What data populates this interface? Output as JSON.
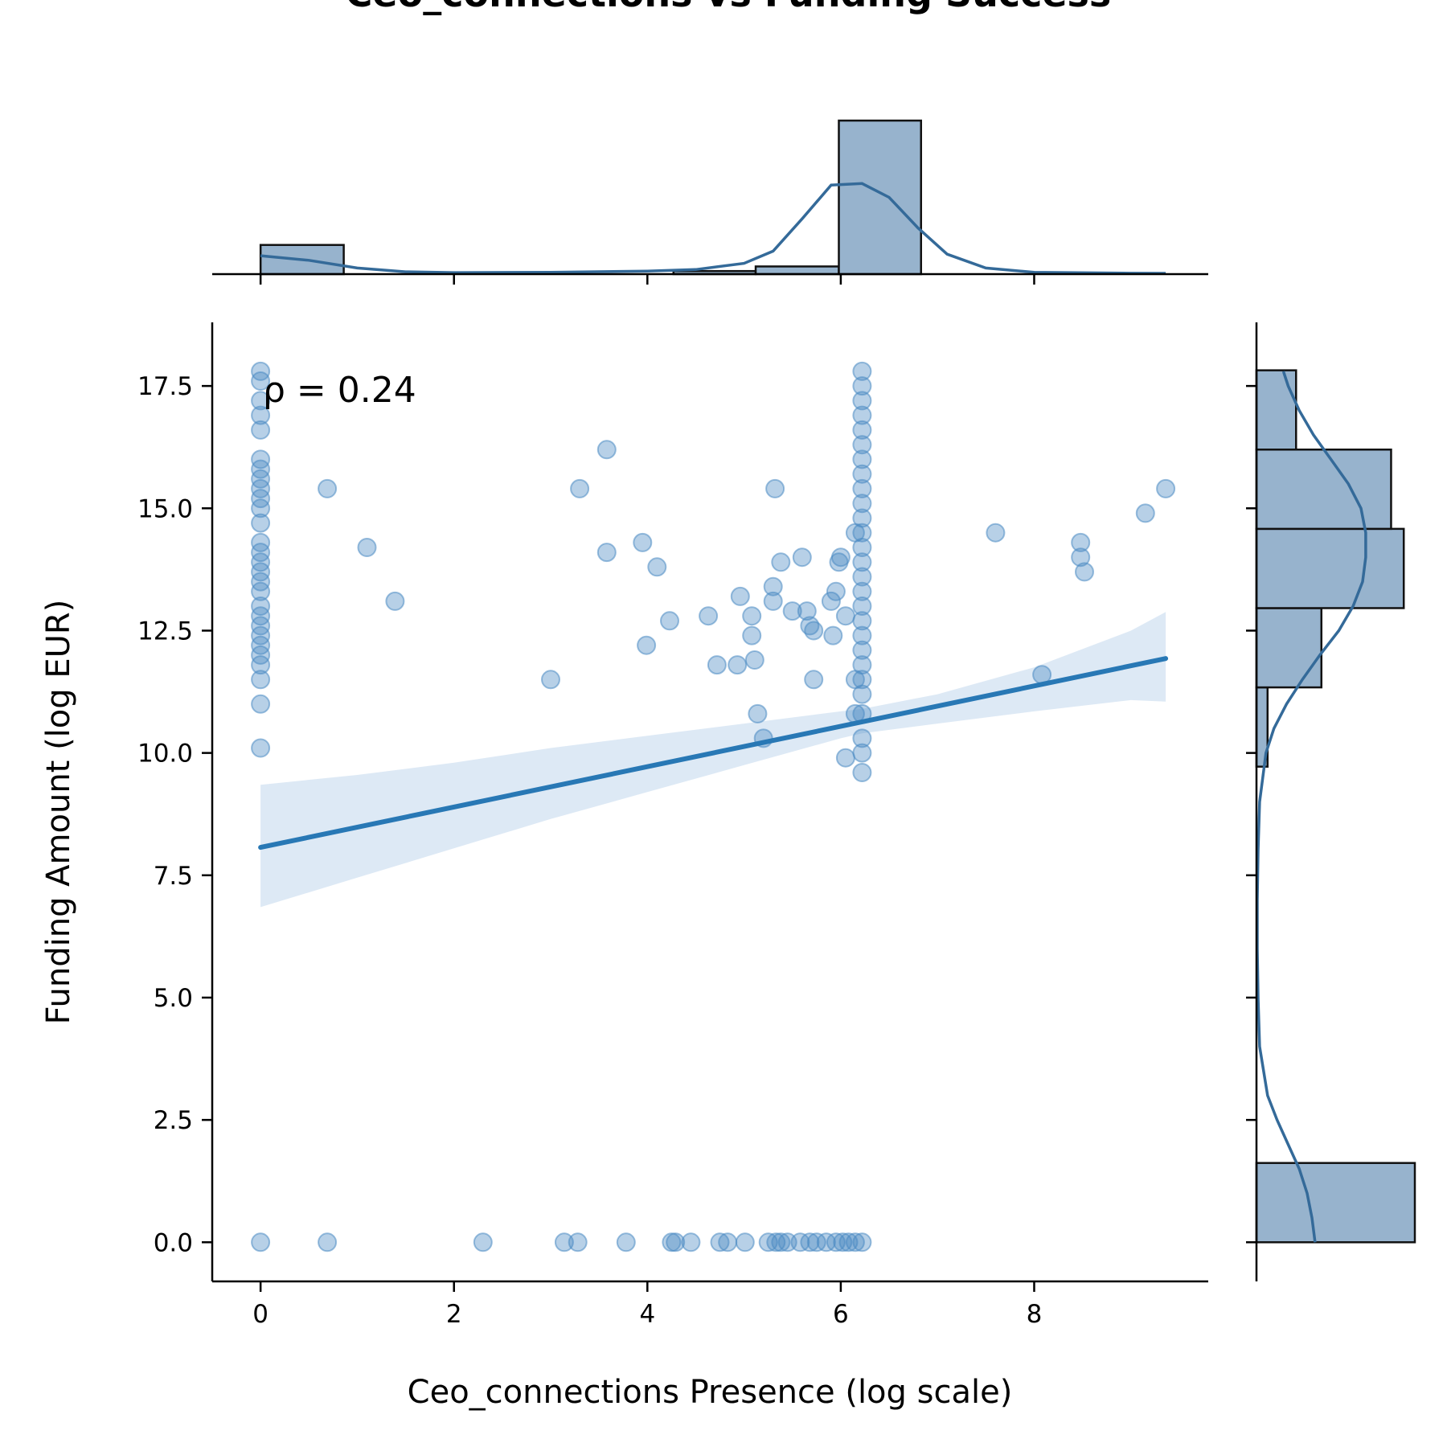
{
  "chart_data": {
    "type": "scatter",
    "title": "Ceo_connections vs Funding Success",
    "xlabel": "Ceo_connections Presence (log scale)",
    "ylabel": "Funding Amount (log EUR)",
    "annotation": "ρ = 0.24",
    "xlim": [
      -0.5,
      9.8
    ],
    "ylim": [
      -0.8,
      18.8
    ],
    "x_ticks": [
      0,
      2,
      4,
      6,
      8
    ],
    "y_ticks": [
      0.0,
      2.5,
      5.0,
      7.5,
      10.0,
      12.5,
      15.0,
      17.5
    ],
    "grid": false,
    "colors": {
      "points": "#4a8ac2",
      "line": "#2878b5",
      "band": "#c6dbef",
      "hist_fill": "#97b3cd",
      "kde": "#346a99"
    },
    "series": [
      {
        "points": [
          [
            0,
            17.8
          ],
          [
            0,
            17.6
          ],
          [
            0,
            17.2
          ],
          [
            0,
            16.9
          ],
          [
            0,
            16.6
          ],
          [
            0,
            16.0
          ],
          [
            0,
            15.8
          ],
          [
            0,
            15.6
          ],
          [
            0,
            15.4
          ],
          [
            0,
            15.2
          ],
          [
            0,
            15.0
          ],
          [
            0,
            14.7
          ],
          [
            0,
            14.3
          ],
          [
            0,
            14.1
          ],
          [
            0,
            13.9
          ],
          [
            0,
            13.7
          ],
          [
            0,
            13.5
          ],
          [
            0,
            13.3
          ],
          [
            0,
            13.0
          ],
          [
            0,
            12.8
          ],
          [
            0,
            12.6
          ],
          [
            0,
            12.4
          ],
          [
            0,
            12.2
          ],
          [
            0,
            12.0
          ],
          [
            0,
            11.8
          ],
          [
            0,
            11.5
          ],
          [
            0,
            11.0
          ],
          [
            0,
            10.1
          ],
          [
            0.69,
            15.4
          ],
          [
            1.1,
            14.2
          ],
          [
            1.39,
            13.1
          ],
          [
            3.3,
            15.4
          ],
          [
            3.58,
            16.2
          ],
          [
            3.58,
            14.1
          ],
          [
            3.0,
            11.5
          ],
          [
            3.95,
            14.3
          ],
          [
            4.1,
            13.8
          ],
          [
            3.99,
            12.2
          ],
          [
            4.23,
            12.7
          ],
          [
            4.63,
            12.8
          ],
          [
            4.72,
            11.8
          ],
          [
            4.93,
            11.8
          ],
          [
            4.96,
            13.2
          ],
          [
            5.08,
            12.8
          ],
          [
            5.08,
            12.4
          ],
          [
            5.11,
            11.9
          ],
          [
            5.14,
            10.8
          ],
          [
            5.2,
            10.3
          ],
          [
            5.3,
            13.4
          ],
          [
            5.3,
            13.1
          ],
          [
            5.32,
            15.4
          ],
          [
            5.38,
            13.9
          ],
          [
            5.5,
            12.9
          ],
          [
            5.6,
            14.0
          ],
          [
            5.65,
            12.9
          ],
          [
            5.68,
            12.6
          ],
          [
            5.72,
            12.5
          ],
          [
            5.72,
            11.5
          ],
          [
            5.9,
            13.1
          ],
          [
            5.92,
            12.4
          ],
          [
            5.95,
            13.3
          ],
          [
            5.98,
            13.9
          ],
          [
            6.0,
            14.0
          ],
          [
            6.05,
            12.8
          ],
          [
            6.05,
            9.9
          ],
          [
            6.15,
            14.5
          ],
          [
            6.15,
            11.5
          ],
          [
            6.15,
            10.8
          ],
          [
            6.22,
            17.8
          ],
          [
            6.22,
            17.5
          ],
          [
            6.22,
            17.2
          ],
          [
            6.22,
            16.9
          ],
          [
            6.22,
            16.6
          ],
          [
            6.22,
            16.3
          ],
          [
            6.22,
            16.0
          ],
          [
            6.22,
            15.7
          ],
          [
            6.22,
            15.4
          ],
          [
            6.22,
            15.1
          ],
          [
            6.22,
            14.8
          ],
          [
            6.22,
            14.5
          ],
          [
            6.22,
            14.2
          ],
          [
            6.22,
            13.9
          ],
          [
            6.22,
            13.6
          ],
          [
            6.22,
            13.3
          ],
          [
            6.22,
            13.0
          ],
          [
            6.22,
            12.7
          ],
          [
            6.22,
            12.4
          ],
          [
            6.22,
            12.1
          ],
          [
            6.22,
            11.8
          ],
          [
            6.22,
            11.5
          ],
          [
            6.22,
            11.2
          ],
          [
            6.22,
            10.8
          ],
          [
            6.22,
            10.3
          ],
          [
            6.22,
            10.0
          ],
          [
            6.22,
            9.6
          ],
          [
            7.6,
            14.5
          ],
          [
            8.08,
            11.6
          ],
          [
            8.48,
            14.3
          ],
          [
            8.48,
            14.0
          ],
          [
            8.52,
            13.7
          ],
          [
            9.15,
            14.9
          ],
          [
            9.36,
            15.4
          ],
          [
            0,
            0
          ],
          [
            0.69,
            0
          ],
          [
            2.3,
            0
          ],
          [
            3.14,
            0
          ],
          [
            3.28,
            0
          ],
          [
            3.78,
            0
          ],
          [
            4.25,
            0
          ],
          [
            4.29,
            0
          ],
          [
            4.45,
            0
          ],
          [
            4.75,
            0
          ],
          [
            4.83,
            0
          ],
          [
            5.01,
            0
          ],
          [
            5.25,
            0
          ],
          [
            5.33,
            0
          ],
          [
            5.38,
            0
          ],
          [
            5.45,
            0
          ],
          [
            5.58,
            0
          ],
          [
            5.68,
            0
          ],
          [
            5.75,
            0
          ],
          [
            5.85,
            0
          ],
          [
            5.95,
            0
          ],
          [
            6.02,
            0
          ],
          [
            6.08,
            0
          ],
          [
            6.15,
            0
          ],
          [
            6.22,
            0
          ]
        ]
      }
    ],
    "regression": {
      "x": [
        0,
        9.36
      ],
      "y": [
        8.07,
        11.93
      ]
    },
    "confidence_band": {
      "x": [
        0,
        1,
        2,
        3,
        4,
        5,
        6,
        6.22,
        7,
        8,
        9,
        9.36
      ],
      "upper": [
        9.35,
        9.55,
        9.8,
        10.1,
        10.35,
        10.6,
        10.85,
        10.9,
        11.2,
        11.75,
        12.5,
        12.88
      ],
      "lower": [
        6.85,
        7.45,
        8.05,
        8.65,
        9.2,
        9.75,
        10.3,
        10.4,
        10.6,
        10.85,
        11.08,
        11.05
      ]
    },
    "top_histogram": {
      "bins": [
        {
          "x0": 0,
          "x1": 0.86,
          "count": 0.19
        },
        {
          "x0": 4.27,
          "x1": 5.12,
          "count": 0.02
        },
        {
          "x0": 5.12,
          "x1": 5.98,
          "count": 0.05
        },
        {
          "x0": 5.98,
          "x1": 6.83,
          "count": 1.0
        }
      ],
      "kde": {
        "x": [
          0,
          0.5,
          1,
          1.5,
          2,
          3,
          4,
          4.5,
          5,
          5.3,
          5.6,
          5.9,
          6.22,
          6.5,
          6.8,
          7.1,
          7.5,
          8,
          9,
          9.36
        ],
        "y": [
          0.12,
          0.09,
          0.04,
          0.015,
          0.01,
          0.012,
          0.02,
          0.03,
          0.07,
          0.15,
          0.36,
          0.58,
          0.59,
          0.5,
          0.3,
          0.13,
          0.04,
          0.012,
          0.006,
          0.005
        ]
      }
    },
    "right_histogram": {
      "bins": [
        {
          "y0": 0,
          "y1": 1.62,
          "count": 1.0
        },
        {
          "y0": 9.72,
          "y1": 11.34,
          "count": 0.07
        },
        {
          "y0": 11.34,
          "y1": 12.96,
          "count": 0.41
        },
        {
          "y0": 12.96,
          "y1": 14.58,
          "count": 0.93
        },
        {
          "y0": 14.58,
          "y1": 16.2,
          "count": 0.85
        },
        {
          "y0": 16.2,
          "y1": 17.82,
          "count": 0.25
        }
      ],
      "kde": {
        "y": [
          0,
          0.5,
          1,
          1.5,
          2,
          2.5,
          3,
          4,
          5,
          6,
          7,
          8,
          9,
          10,
          10.5,
          11,
          11.5,
          12,
          12.5,
          13,
          13.5,
          14,
          14.5,
          15,
          15.5,
          16,
          16.5,
          17,
          17.5,
          17.8
        ],
        "x": [
          0.37,
          0.35,
          0.32,
          0.27,
          0.2,
          0.13,
          0.07,
          0.02,
          0.01,
          0.005,
          0.005,
          0.01,
          0.02,
          0.06,
          0.11,
          0.19,
          0.29,
          0.4,
          0.52,
          0.61,
          0.67,
          0.69,
          0.69,
          0.66,
          0.58,
          0.47,
          0.36,
          0.27,
          0.2,
          0.17
        ]
      }
    }
  }
}
